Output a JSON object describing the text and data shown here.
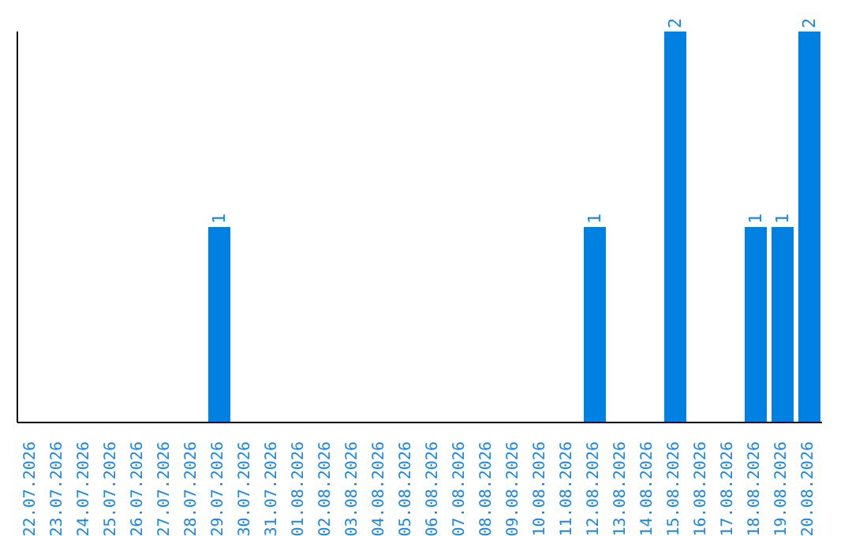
{
  "chart_data": {
    "type": "bar",
    "categories": [
      "22.07.2026",
      "23.07.2026",
      "24.07.2026",
      "25.07.2026",
      "26.07.2026",
      "27.07.2026",
      "28.07.2026",
      "29.07.2026",
      "30.07.2026",
      "31.07.2026",
      "01.08.2026",
      "02.08.2026",
      "03.08.2026",
      "04.08.2026",
      "05.08.2026",
      "06.08.2026",
      "07.08.2026",
      "08.08.2026",
      "09.08.2026",
      "10.08.2026",
      "11.08.2026",
      "12.08.2026",
      "13.08.2026",
      "14.08.2026",
      "15.08.2026",
      "16.08.2026",
      "17.08.2026",
      "18.08.2026",
      "19.08.2026",
      "20.08.2026"
    ],
    "values": [
      0,
      0,
      0,
      0,
      0,
      0,
      0,
      1,
      0,
      0,
      0,
      0,
      0,
      0,
      0,
      0,
      0,
      0,
      0,
      0,
      0,
      1,
      0,
      0,
      2,
      0,
      0,
      1,
      1,
      2
    ],
    "value_labels": [
      null,
      null,
      null,
      null,
      null,
      null,
      null,
      "1",
      null,
      null,
      null,
      null,
      null,
      null,
      null,
      null,
      null,
      null,
      null,
      null,
      null,
      "1",
      null,
      null,
      "2",
      null,
      null,
      "1",
      "1",
      "2"
    ],
    "color": "#0080e0",
    "tick_labels": "x",
    "grid": false,
    "legend": false
  }
}
